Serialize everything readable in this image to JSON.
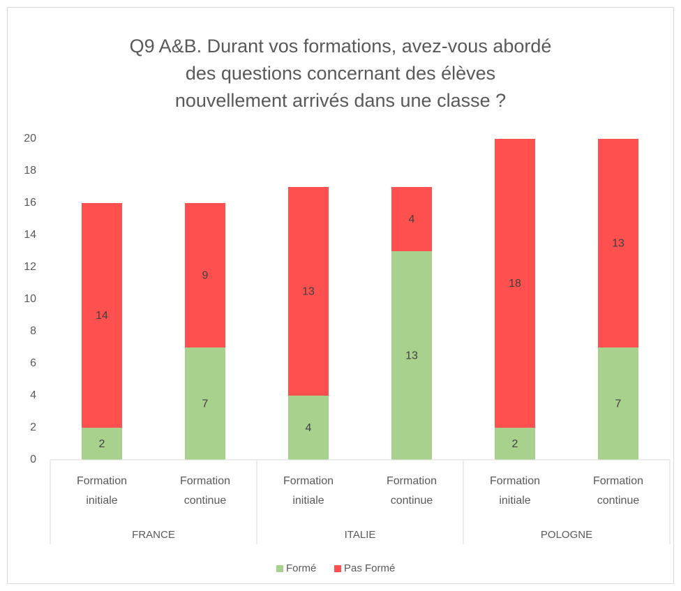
{
  "chart_data": {
    "type": "bar",
    "stacked": true,
    "title": [
      "Q9 A&B. Durant vos formations, avez-vous abordé",
      "des questions concernant des élèves",
      "nouvellement arrivés dans une classe ?"
    ],
    "groups": [
      "FRANCE",
      "ITALIE",
      "POLOGNE"
    ],
    "categories": [
      "Formation initiale",
      "Formation continue",
      "Formation initiale",
      "Formation continue",
      "Formation initiale",
      "Formation continue"
    ],
    "series": [
      {
        "name": "Formé",
        "color": "#a9d18e",
        "values": [
          2,
          7,
          4,
          13,
          2,
          7
        ]
      },
      {
        "name": "Pas Formé",
        "color": "#ff5050",
        "values": [
          14,
          9,
          13,
          4,
          18,
          13
        ]
      }
    ],
    "ylim": [
      0,
      20
    ],
    "yticks": [
      0,
      2,
      4,
      6,
      8,
      10,
      12,
      14,
      16,
      18,
      20
    ],
    "grid": false,
    "legend": "bottom"
  }
}
